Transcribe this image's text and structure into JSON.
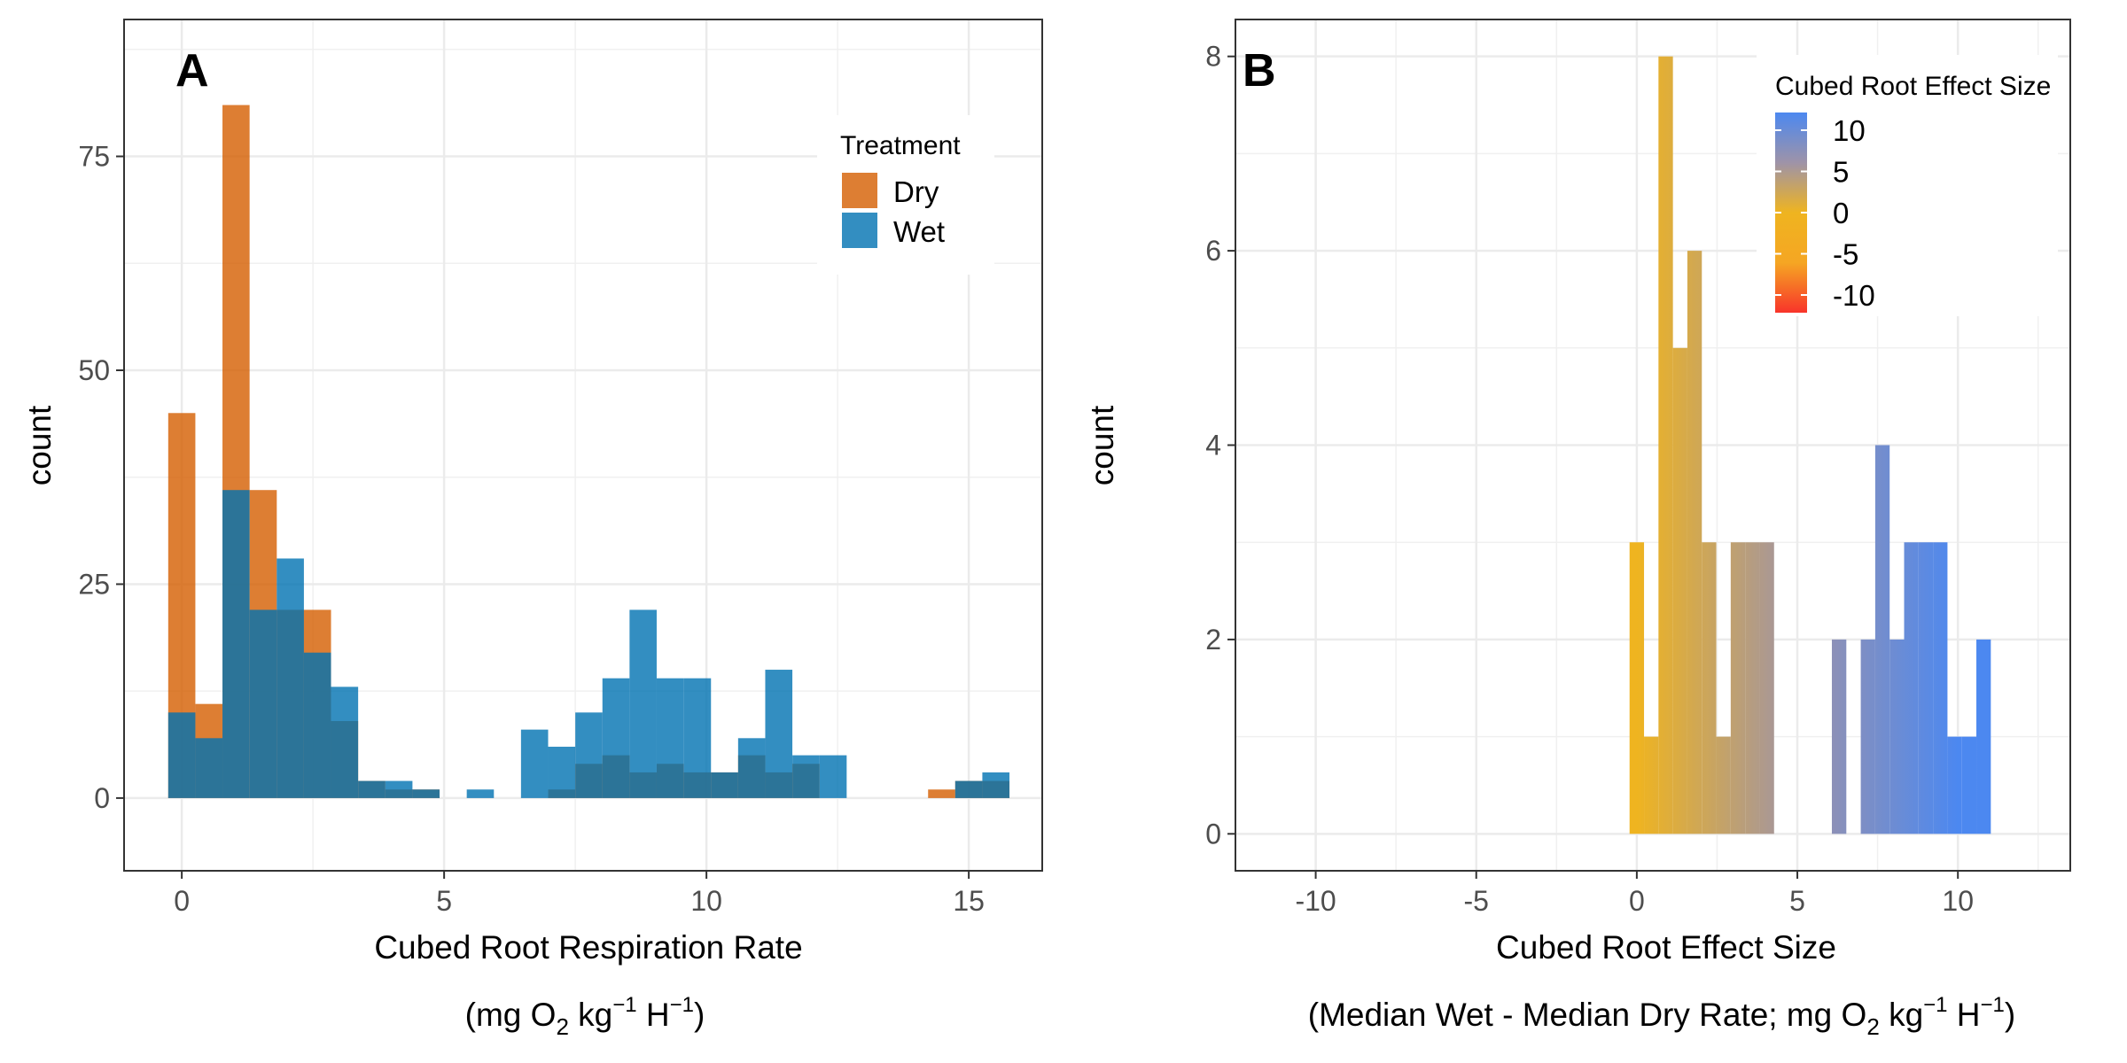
{
  "chart_data": [
    {
      "type": "bar",
      "panel_label": "A",
      "xlabel": "Cubed Root Respiration Rate",
      "xlabel_units": {
        "prefix": "(mg O",
        "sub": "2",
        "middle": " kg",
        "sup1": "−1",
        "middle2": " H",
        "sup2": "−1",
        "suffix": ")"
      },
      "ylabel": "count",
      "xlim": [
        -1.1,
        16.4
      ],
      "ylim": [
        -8.5,
        91
      ],
      "xticks": [
        0,
        5,
        10,
        15
      ],
      "yticks": [
        0,
        25,
        50,
        75
      ],
      "bin_width": 0.517,
      "grid": true,
      "legend": {
        "title": "Treatment",
        "position": "top-right"
      },
      "series": [
        {
          "name": "Dry",
          "color": "#D55E00",
          "bins": [
            {
              "x": 0.0,
              "y": 45
            },
            {
              "x": 0.517,
              "y": 11
            },
            {
              "x": 1.034,
              "y": 81
            },
            {
              "x": 1.552,
              "y": 36
            },
            {
              "x": 2.069,
              "y": 22
            },
            {
              "x": 2.586,
              "y": 22
            },
            {
              "x": 3.103,
              "y": 9
            },
            {
              "x": 3.621,
              "y": 2
            },
            {
              "x": 4.138,
              "y": 1
            },
            {
              "x": 4.655,
              "y": 1
            },
            {
              "x": 7.241,
              "y": 1
            },
            {
              "x": 7.759,
              "y": 4
            },
            {
              "x": 8.276,
              "y": 5
            },
            {
              "x": 8.793,
              "y": 3
            },
            {
              "x": 9.31,
              "y": 4
            },
            {
              "x": 9.828,
              "y": 3
            },
            {
              "x": 10.345,
              "y": 3
            },
            {
              "x": 10.862,
              "y": 5
            },
            {
              "x": 11.379,
              "y": 3
            },
            {
              "x": 11.897,
              "y": 4
            },
            {
              "x": 14.483,
              "y": 1
            },
            {
              "x": 15.0,
              "y": 2
            },
            {
              "x": 15.517,
              "y": 2
            }
          ]
        },
        {
          "name": "Wet",
          "color": "#0072B2",
          "bins": [
            {
              "x": 0.0,
              "y": 10
            },
            {
              "x": 0.517,
              "y": 7
            },
            {
              "x": 1.034,
              "y": 36
            },
            {
              "x": 1.552,
              "y": 22
            },
            {
              "x": 2.069,
              "y": 28
            },
            {
              "x": 2.586,
              "y": 17
            },
            {
              "x": 3.103,
              "y": 13
            },
            {
              "x": 3.621,
              "y": 2
            },
            {
              "x": 4.138,
              "y": 2
            },
            {
              "x": 4.655,
              "y": 1
            },
            {
              "x": 5.69,
              "y": 1
            },
            {
              "x": 6.724,
              "y": 8
            },
            {
              "x": 7.241,
              "y": 6
            },
            {
              "x": 7.759,
              "y": 10
            },
            {
              "x": 8.276,
              "y": 14
            },
            {
              "x": 8.793,
              "y": 22
            },
            {
              "x": 9.31,
              "y": 14
            },
            {
              "x": 9.828,
              "y": 14
            },
            {
              "x": 10.345,
              "y": 3
            },
            {
              "x": 10.862,
              "y": 7
            },
            {
              "x": 11.379,
              "y": 15
            },
            {
              "x": 11.897,
              "y": 5
            },
            {
              "x": 12.414,
              "y": 5
            },
            {
              "x": 15.0,
              "y": 2
            },
            {
              "x": 15.517,
              "y": 3
            }
          ]
        }
      ]
    },
    {
      "type": "bar",
      "panel_label": "B",
      "xlabel": "Cubed Root Effect Size",
      "xlabel_units": {
        "prefix": "(Median Wet - Median Dry Rate; mg O",
        "sub": "2",
        "middle": " kg",
        "sup1": "−1",
        "middle2": " H",
        "sup2": "−1",
        "suffix": ")"
      },
      "ylabel": "count",
      "xlim": [
        -12.5,
        13.5
      ],
      "ylim": [
        -0.38,
        8.38
      ],
      "xticks": [
        -10,
        -5,
        0,
        5,
        10
      ],
      "yticks": [
        0,
        2,
        4,
        6,
        8
      ],
      "bin_width": 0.45,
      "grid": true,
      "legend": {
        "title": "Cubed Root Effect Size",
        "position": "top-right",
        "scale": [
          -10,
          -5,
          0,
          5,
          10
        ],
        "gradient": [
          "#F8342A",
          "#F5A623",
          "#EFB420",
          "#9E93A8",
          "#4C88F0"
        ]
      },
      "bins": [
        {
          "x": 0.0,
          "y": 3
        },
        {
          "x": 0.45,
          "y": 1
        },
        {
          "x": 0.9,
          "y": 8
        },
        {
          "x": 1.35,
          "y": 5
        },
        {
          "x": 1.8,
          "y": 6
        },
        {
          "x": 2.25,
          "y": 3
        },
        {
          "x": 2.7,
          "y": 1
        },
        {
          "x": 3.15,
          "y": 3
        },
        {
          "x": 3.6,
          "y": 3
        },
        {
          "x": 4.05,
          "y": 3
        },
        {
          "x": 6.3,
          "y": 2
        },
        {
          "x": 7.2,
          "y": 2
        },
        {
          "x": 7.65,
          "y": 4
        },
        {
          "x": 8.1,
          "y": 2
        },
        {
          "x": 8.55,
          "y": 3
        },
        {
          "x": 9.0,
          "y": 3
        },
        {
          "x": 9.45,
          "y": 3
        },
        {
          "x": 9.9,
          "y": 1
        },
        {
          "x": 10.35,
          "y": 1
        },
        {
          "x": 10.8,
          "y": 2
        }
      ]
    }
  ]
}
